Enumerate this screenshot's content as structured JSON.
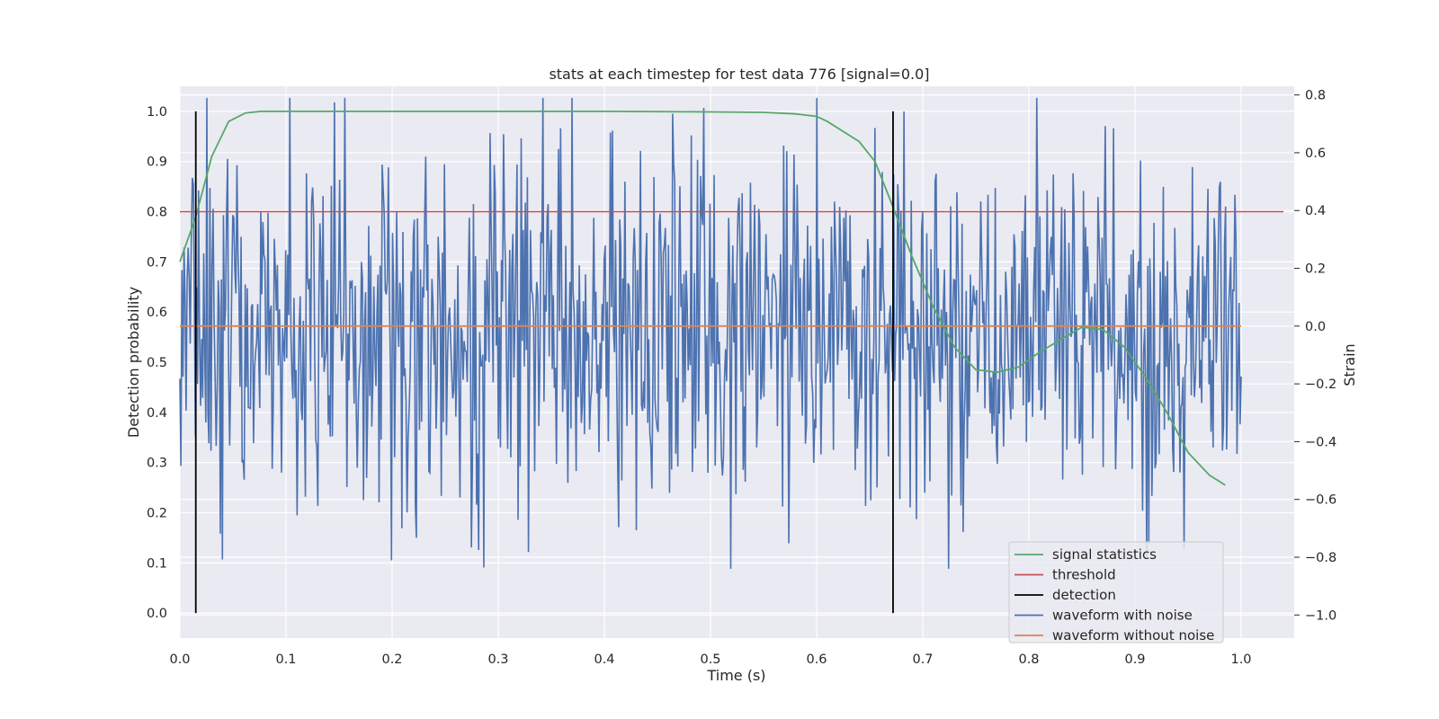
{
  "chart_data": {
    "type": "line",
    "title": "stats at each timestep for test data 776 [signal=0.0]",
    "xlabel": "Time (s)",
    "ylabel_left": "Detection probability",
    "ylabel_right": "Strain",
    "xlim": [
      0.0,
      1.05
    ],
    "ylim_left": [
      -0.05,
      1.05
    ],
    "ylim_right": [
      -1.08,
      0.83
    ],
    "x_ticks": [
      "0.0",
      "0.1",
      "0.2",
      "0.3",
      "0.4",
      "0.5",
      "0.6",
      "0.7",
      "0.8",
      "0.9",
      "1.0"
    ],
    "y_left_ticks": [
      "0.0",
      "0.1",
      "0.2",
      "0.3",
      "0.4",
      "0.5",
      "0.6",
      "0.7",
      "0.8",
      "0.9",
      "1.0"
    ],
    "y_right_ticks": [
      "−1.0",
      "−0.8",
      "−0.6",
      "−0.4",
      "−0.2",
      "0.0",
      "0.2",
      "0.4",
      "0.6",
      "0.8"
    ],
    "grid": true,
    "legend_position": "lower-right",
    "colors": {
      "signal_statistics": "#55a868",
      "threshold": "#c44e52",
      "detection": "#000000",
      "waveform_with_noise": "#4c72b0",
      "waveform_without_noise": "#dd8452",
      "plot_background": "#eaeaf2",
      "grid": "#ffffff"
    },
    "series": [
      {
        "name": "signal statistics",
        "axis": "left",
        "x": [
          0.0,
          0.015,
          0.03,
          0.046,
          0.062,
          0.077,
          0.1,
          0.2,
          0.3,
          0.4,
          0.5,
          0.55,
          0.58,
          0.6,
          0.61,
          0.625,
          0.64,
          0.655,
          0.67,
          0.69,
          0.71,
          0.73,
          0.75,
          0.77,
          0.79,
          0.81,
          0.83,
          0.85,
          0.87,
          0.89,
          0.91,
          0.93,
          0.95,
          0.97,
          0.985
        ],
        "y": [
          0.7,
          0.79,
          0.91,
          0.98,
          0.997,
          1.0,
          1.0,
          1.0,
          1.0,
          1.0,
          0.999,
          0.998,
          0.995,
          0.99,
          0.98,
          0.96,
          0.94,
          0.9,
          0.82,
          0.71,
          0.61,
          0.53,
          0.485,
          0.48,
          0.49,
          0.52,
          0.545,
          0.57,
          0.565,
          0.53,
          0.47,
          0.4,
          0.32,
          0.275,
          0.255
        ]
      },
      {
        "name": "threshold",
        "axis": "left",
        "x": [
          0.0,
          1.04
        ],
        "y": [
          0.8,
          0.8
        ]
      },
      {
        "name": "detection",
        "axis": "left",
        "segments": [
          {
            "x": 0.015,
            "y": [
              0.0,
              1.0
            ]
          },
          {
            "x": 0.672,
            "y": [
              0.0,
              1.0
            ]
          }
        ]
      },
      {
        "name": "waveform with noise",
        "axis": "right",
        "note_samples": "1024 samples from 0.0 to 1.0 s, amplitude approx ±0.8 (min -0.84, max 0.79)",
        "x_range": [
          0.0,
          1.0
        ],
        "n_points": 1024,
        "seed": 776,
        "std": 0.32,
        "min": -0.84,
        "max": 0.79
      },
      {
        "name": "waveform without noise",
        "axis": "right",
        "x": [
          0.0,
          1.0
        ],
        "y": [
          0.0,
          0.0
        ]
      }
    ],
    "legend_entries": [
      "signal statistics",
      "threshold",
      "detection",
      "waveform with noise",
      "waveform without noise"
    ]
  }
}
